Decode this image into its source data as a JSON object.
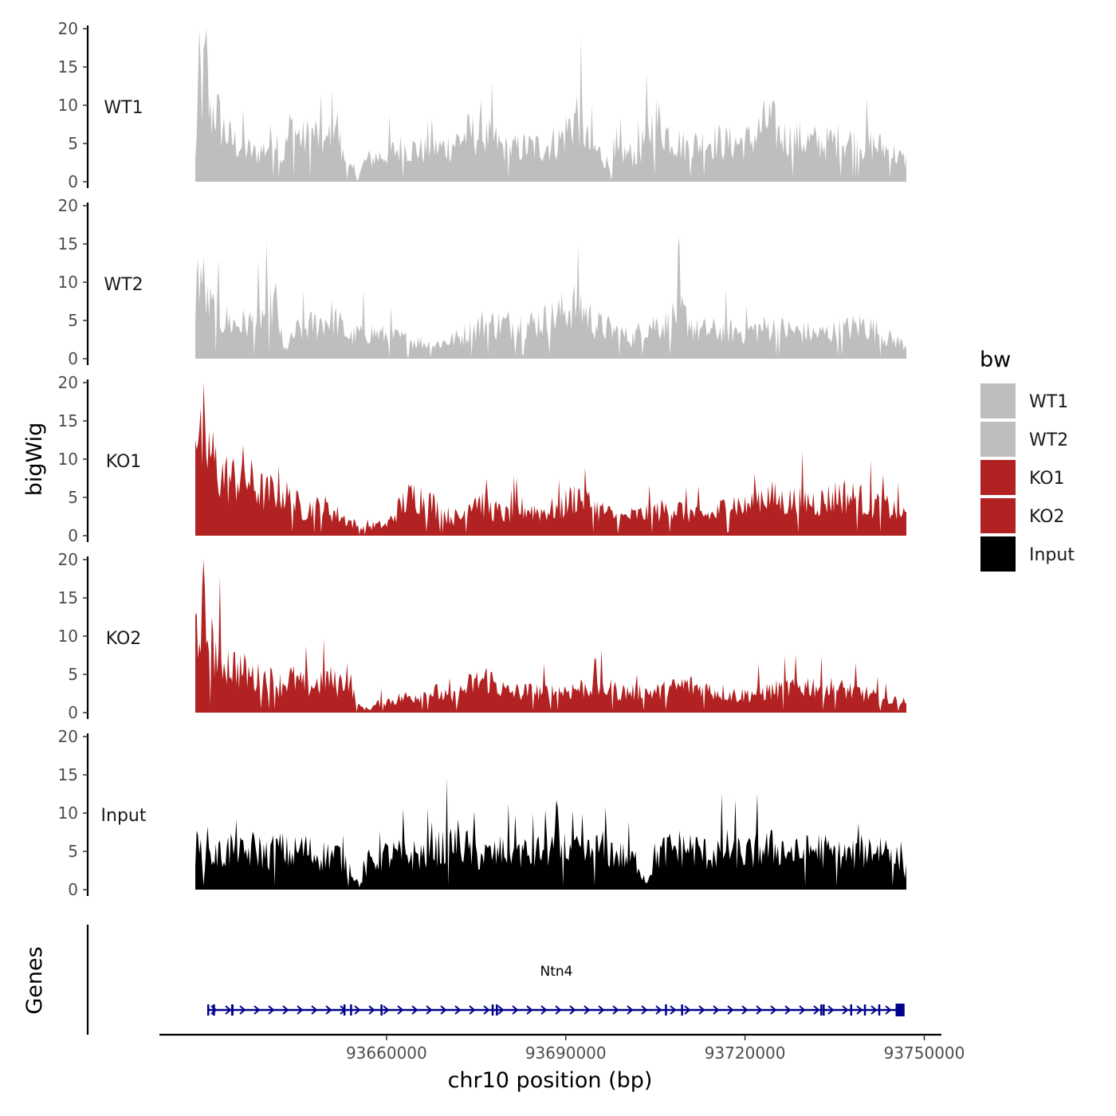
{
  "chart_data": {
    "type": "area",
    "y_axis_title": "bigWig",
    "x_axis_title": "chr10 position (bp)",
    "genes_axis_title": "Genes",
    "chromosome": "chr10",
    "x_range": [
      93628000,
      93747000
    ],
    "x_ticks": [
      93660000,
      93690000,
      93720000,
      93750000
    ],
    "x_tick_labels": [
      "93660000",
      "93690000",
      "93720000",
      "93750000"
    ],
    "ylim": [
      0,
      20
    ],
    "y_ticks": [
      0,
      5,
      10,
      15,
      20
    ],
    "y_tick_labels": [
      "0",
      "5",
      "10",
      "15",
      "20"
    ],
    "series": [
      {
        "name": "WT1",
        "color": "#bebebe",
        "profile": [
          [
            93628000,
            3
          ],
          [
            93628600,
            16
          ],
          [
            93629200,
            12
          ],
          [
            93629800,
            19
          ],
          [
            93630400,
            9
          ],
          [
            93631200,
            11
          ],
          [
            93632400,
            8
          ],
          [
            93634000,
            6
          ],
          [
            93636000,
            5
          ],
          [
            93638000,
            4
          ],
          [
            93640000,
            5
          ],
          [
            93641500,
            7
          ],
          [
            93642500,
            3
          ],
          [
            93644000,
            8
          ],
          [
            93646000,
            6
          ],
          [
            93648000,
            7
          ],
          [
            93650000,
            5
          ],
          [
            93651200,
            11
          ],
          [
            93652500,
            4
          ],
          [
            93654000,
            2
          ],
          [
            93655000,
            0.5
          ],
          [
            93656500,
            3
          ],
          [
            93658000,
            3.5
          ],
          [
            93660000,
            4
          ],
          [
            93663000,
            5
          ],
          [
            93666000,
            4.5
          ],
          [
            93670000,
            5
          ],
          [
            93674000,
            7
          ],
          [
            93678000,
            6
          ],
          [
            93680000,
            4.5
          ],
          [
            93683000,
            5
          ],
          [
            93686000,
            5
          ],
          [
            93689000,
            6
          ],
          [
            93692000,
            10
          ],
          [
            93694000,
            5
          ],
          [
            93696000,
            4
          ],
          [
            93697500,
            2
          ],
          [
            93699000,
            4
          ],
          [
            93702000,
            4
          ],
          [
            93705000,
            9
          ],
          [
            93707000,
            7
          ],
          [
            93710000,
            5
          ],
          [
            93714000,
            6
          ],
          [
            93718000,
            5.5
          ],
          [
            93721000,
            6
          ],
          [
            93724000,
            9
          ],
          [
            93726000,
            6.5
          ],
          [
            93729000,
            6
          ],
          [
            93733000,
            5.5
          ],
          [
            93736000,
            6
          ],
          [
            93740000,
            5.5
          ],
          [
            93743000,
            5
          ],
          [
            93746800,
            3
          ]
        ]
      },
      {
        "name": "WT2",
        "color": "#bebebe",
        "profile": [
          [
            93628000,
            9
          ],
          [
            93628800,
            13
          ],
          [
            93630000,
            8
          ],
          [
            93632000,
            6
          ],
          [
            93634500,
            5
          ],
          [
            93637000,
            5
          ],
          [
            93639000,
            6
          ],
          [
            93641500,
            8
          ],
          [
            93642800,
            1
          ],
          [
            93645000,
            4
          ],
          [
            93648000,
            5
          ],
          [
            93651000,
            6
          ],
          [
            93654000,
            3
          ],
          [
            93656000,
            4
          ],
          [
            93659000,
            3.5
          ],
          [
            93662000,
            3
          ],
          [
            93665000,
            2.5
          ],
          [
            93668000,
            2
          ],
          [
            93672000,
            3
          ],
          [
            93676000,
            5
          ],
          [
            93680000,
            5
          ],
          [
            93684000,
            5
          ],
          [
            93688000,
            6
          ],
          [
            93692000,
            8
          ],
          [
            93695000,
            5
          ],
          [
            93698000,
            4
          ],
          [
            93701000,
            3
          ],
          [
            93704000,
            5
          ],
          [
            93707000,
            5
          ],
          [
            93709000,
            7
          ],
          [
            93712000,
            4
          ],
          [
            93716000,
            4
          ],
          [
            93720000,
            4
          ],
          [
            93724000,
            4.5
          ],
          [
            93728000,
            4
          ],
          [
            93732000,
            3.5
          ],
          [
            93736000,
            4
          ],
          [
            93740000,
            5
          ],
          [
            93744000,
            3
          ],
          [
            93746800,
            2
          ]
        ]
      },
      {
        "name": "KO1",
        "color": "#b22222",
        "profile": [
          [
            93628000,
            19
          ],
          [
            93628800,
            13
          ],
          [
            93630500,
            12
          ],
          [
            93632000,
            9
          ],
          [
            93634000,
            8
          ],
          [
            93636000,
            9
          ],
          [
            93638000,
            7
          ],
          [
            93640000,
            6
          ],
          [
            93642000,
            7
          ],
          [
            93644000,
            5
          ],
          [
            93646000,
            4
          ],
          [
            93648000,
            4
          ],
          [
            93650000,
            4
          ],
          [
            93652000,
            3
          ],
          [
            93654000,
            2
          ],
          [
            93656000,
            1
          ],
          [
            93658000,
            1.5
          ],
          [
            93660000,
            1.5
          ],
          [
            93663000,
            5
          ],
          [
            93665000,
            6
          ],
          [
            93667000,
            5
          ],
          [
            93670000,
            3
          ],
          [
            93672500,
            2.5
          ],
          [
            93674500,
            6
          ],
          [
            93677000,
            4
          ],
          [
            93680000,
            3
          ],
          [
            93683000,
            4
          ],
          [
            93686000,
            3.5
          ],
          [
            93689000,
            4
          ],
          [
            93692000,
            6
          ],
          [
            93695000,
            4
          ],
          [
            93699000,
            2.5
          ],
          [
            93702000,
            3
          ],
          [
            93705000,
            3.5
          ],
          [
            93708000,
            4
          ],
          [
            93712000,
            3
          ],
          [
            93715000,
            3
          ],
          [
            93717500,
            5
          ],
          [
            93720000,
            4
          ],
          [
            93723000,
            6
          ],
          [
            93726000,
            5
          ],
          [
            93729000,
            5
          ],
          [
            93733000,
            5
          ],
          [
            93736000,
            6
          ],
          [
            93740000,
            5
          ],
          [
            93744000,
            4
          ],
          [
            93746800,
            3
          ]
        ]
      },
      {
        "name": "KO2",
        "color": "#b22222",
        "profile": [
          [
            93628000,
            12
          ],
          [
            93629000,
            14
          ],
          [
            93630500,
            10
          ],
          [
            93632000,
            8
          ],
          [
            93634000,
            7
          ],
          [
            93636000,
            6
          ],
          [
            93638000,
            5
          ],
          [
            93640000,
            5
          ],
          [
            93642000,
            4
          ],
          [
            93644000,
            5
          ],
          [
            93646000,
            4
          ],
          [
            93648000,
            4
          ],
          [
            93650000,
            5
          ],
          [
            93652000,
            4
          ],
          [
            93653500,
            6
          ],
          [
            93655000,
            1
          ],
          [
            93657000,
            0.5
          ],
          [
            93659000,
            1.5
          ],
          [
            93662000,
            2
          ],
          [
            93665000,
            2.5
          ],
          [
            93668000,
            3
          ],
          [
            93671000,
            2
          ],
          [
            93674000,
            4
          ],
          [
            93677000,
            5
          ],
          [
            93680000,
            3
          ],
          [
            93684000,
            3
          ],
          [
            93688000,
            3
          ],
          [
            93692000,
            3.5
          ],
          [
            93695000,
            4
          ],
          [
            93699000,
            3
          ],
          [
            93703000,
            3
          ],
          [
            93706000,
            3
          ],
          [
            93710000,
            4
          ],
          [
            93713000,
            3.5
          ],
          [
            93716000,
            3
          ],
          [
            93719000,
            2.5
          ],
          [
            93723000,
            3
          ],
          [
            93727000,
            3.5
          ],
          [
            93731000,
            4
          ],
          [
            93735000,
            3.5
          ],
          [
            93739000,
            3
          ],
          [
            93743000,
            2
          ],
          [
            93746800,
            1.5
          ]
        ]
      },
      {
        "name": "Input",
        "color": "#000000",
        "profile": [
          [
            93628000,
            6
          ],
          [
            93630000,
            5
          ],
          [
            93632000,
            5
          ],
          [
            93634000,
            6
          ],
          [
            93636000,
            5
          ],
          [
            93638000,
            6
          ],
          [
            93640000,
            5
          ],
          [
            93642000,
            6
          ],
          [
            93644000,
            5
          ],
          [
            93646000,
            6
          ],
          [
            93648000,
            5
          ],
          [
            93650000,
            5
          ],
          [
            93652000,
            5
          ],
          [
            93654000,
            3
          ],
          [
            93655500,
            0.5
          ],
          [
            93657000,
            4
          ],
          [
            93660000,
            5
          ],
          [
            93663000,
            5
          ],
          [
            93666000,
            5
          ],
          [
            93669000,
            6
          ],
          [
            93672000,
            7
          ],
          [
            93675000,
            5
          ],
          [
            93678000,
            5
          ],
          [
            93681000,
            6
          ],
          [
            93684000,
            5
          ],
          [
            93687000,
            6
          ],
          [
            93690000,
            6
          ],
          [
            93693000,
            5
          ],
          [
            93696000,
            6
          ],
          [
            93699000,
            5
          ],
          [
            93702000,
            4
          ],
          [
            93703500,
            1
          ],
          [
            93705000,
            5
          ],
          [
            93708000,
            6
          ],
          [
            93711000,
            6
          ],
          [
            93714000,
            5
          ],
          [
            93717000,
            6
          ],
          [
            93720000,
            5
          ],
          [
            93723000,
            6
          ],
          [
            93726000,
            6
          ],
          [
            93729000,
            5
          ],
          [
            93732000,
            6
          ],
          [
            93735000,
            5
          ],
          [
            93738000,
            5
          ],
          [
            93741000,
            6
          ],
          [
            93744000,
            6
          ],
          [
            93746800,
            3
          ]
        ]
      }
    ],
    "legend": {
      "title": "bw",
      "position": "right",
      "entries": [
        {
          "label": "WT1",
          "color": "#bebebe"
        },
        {
          "label": "WT2",
          "color": "#bebebe"
        },
        {
          "label": "KO1",
          "color": "#b22222"
        },
        {
          "label": "KO2",
          "color": "#b22222"
        },
        {
          "label": "Input",
          "color": "#000000"
        }
      ]
    },
    "gene": {
      "name": "Ntn4",
      "color": "#00008b",
      "strand": "+",
      "start": 93630000,
      "end": 93746700,
      "exons": [
        [
          93630000,
          93630300
        ],
        [
          93630900,
          93631300
        ],
        [
          93634000,
          93634400
        ],
        [
          93653900,
          93654100
        ],
        [
          93659000,
          93659100
        ],
        [
          93652800,
          93653000
        ],
        [
          93677600,
          93677800
        ],
        [
          93678300,
          93678500
        ],
        [
          93706600,
          93706800
        ],
        [
          93709300,
          93709500
        ],
        [
          93732600,
          93732800
        ],
        [
          93733000,
          93733200
        ],
        [
          93737600,
          93737800
        ],
        [
          93739900,
          93740100
        ],
        [
          93742300,
          93742500
        ],
        [
          93745200,
          93746700
        ]
      ]
    }
  }
}
